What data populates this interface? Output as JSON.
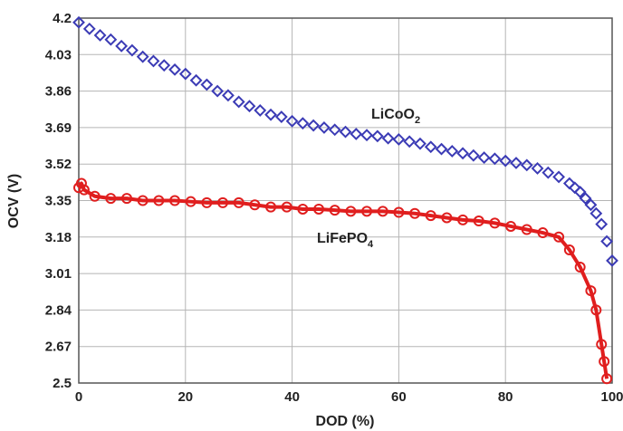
{
  "chart_data": {
    "type": "line",
    "xlabel": "DOD (%)",
    "ylabel": "OCV (V)",
    "xlim": [
      0,
      100
    ],
    "ylim": [
      2.5,
      4.2
    ],
    "x_ticks": [
      "0",
      "20",
      "40",
      "60",
      "80",
      "100"
    ],
    "y_ticks": [
      "2.5",
      "2.67",
      "2.84",
      "3.01",
      "3.18",
      "3.35",
      "3.52",
      "3.69",
      "3.86",
      "4.03",
      "4.2"
    ],
    "grid": true,
    "colors": {
      "LiCoO2": "#3b3bb5",
      "LiFePO4": "#e01e1e",
      "grid": "#b5b5b5",
      "axis": "#555555"
    },
    "series": [
      {
        "name": "LiCoO2",
        "label_main": "LiCoO",
        "label_sub": "2",
        "marker": "diamond",
        "x": [
          0,
          2,
          4,
          6,
          8,
          10,
          12,
          14,
          16,
          18,
          20,
          22,
          24,
          26,
          28,
          30,
          32,
          34,
          36,
          38,
          40,
          42,
          44,
          46,
          48,
          50,
          52,
          54,
          56,
          58,
          60,
          62,
          64,
          66,
          68,
          70,
          72,
          74,
          76,
          78,
          80,
          82,
          84,
          86,
          88,
          90,
          92,
          93,
          94,
          95,
          96,
          97,
          98,
          99,
          100
        ],
        "y": [
          4.18,
          4.15,
          4.12,
          4.1,
          4.07,
          4.05,
          4.02,
          4.0,
          3.98,
          3.96,
          3.94,
          3.91,
          3.89,
          3.86,
          3.84,
          3.81,
          3.79,
          3.77,
          3.75,
          3.74,
          3.72,
          3.71,
          3.7,
          3.69,
          3.68,
          3.67,
          3.66,
          3.655,
          3.65,
          3.64,
          3.635,
          3.625,
          3.615,
          3.6,
          3.59,
          3.58,
          3.57,
          3.56,
          3.55,
          3.545,
          3.535,
          3.525,
          3.515,
          3.5,
          3.48,
          3.46,
          3.43,
          3.41,
          3.39,
          3.36,
          3.33,
          3.29,
          3.24,
          3.16,
          3.07
        ]
      },
      {
        "name": "LiFePO4",
        "label_main": "LiFePO",
        "label_sub": "4",
        "marker": "circle",
        "x": [
          0,
          0.5,
          1,
          3,
          6,
          9,
          12,
          15,
          18,
          21,
          24,
          27,
          30,
          33,
          36,
          39,
          42,
          45,
          48,
          51,
          54,
          57,
          60,
          63,
          66,
          69,
          72,
          75,
          78,
          81,
          84,
          87,
          90,
          92,
          94,
          96,
          97,
          98,
          98.5,
          99
        ],
        "y": [
          3.41,
          3.43,
          3.4,
          3.37,
          3.36,
          3.36,
          3.35,
          3.35,
          3.35,
          3.345,
          3.34,
          3.34,
          3.34,
          3.33,
          3.32,
          3.32,
          3.31,
          3.31,
          3.305,
          3.3,
          3.3,
          3.3,
          3.295,
          3.29,
          3.28,
          3.27,
          3.26,
          3.255,
          3.245,
          3.23,
          3.215,
          3.2,
          3.18,
          3.12,
          3.04,
          2.93,
          2.84,
          2.68,
          2.6,
          2.52
        ]
      }
    ]
  }
}
